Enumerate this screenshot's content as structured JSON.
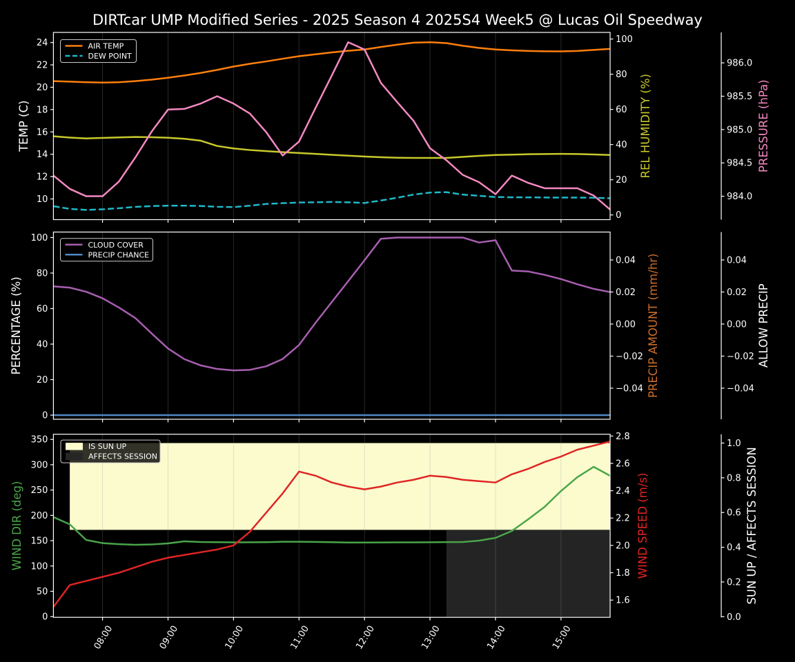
{
  "title": "DIRTcar UMP Modified Series - 2025 Season 4 2025S4 Week5 @ Lucas Oil Speedway",
  "colors": {
    "background": "#000000",
    "text": "#ffffff",
    "spine": "#ffffff",
    "grid": "#999999",
    "air_temp": "#ff7f0e",
    "dew_point": "#1fb9c9",
    "rel_humidity": "#c9c92c",
    "pressure": "#f489c1",
    "cloud_cover": "#a75fb0",
    "precip_chance": "#4f87c5",
    "precip_amount_label": "#cc6d2d",
    "allow_precip_label": "#ffffff",
    "wind_dir": "#4aa54a",
    "wind_speed": "#e02424",
    "sun_up_fill": "#fbfbce",
    "affects_session_fill": "#242424",
    "legend_background": "#000000",
    "legend_border": "#cccccc"
  },
  "x_axis": {
    "xlim_hours": [
      7.25,
      15.75
    ],
    "tick_hours": [
      8,
      9,
      10,
      11,
      12,
      13,
      14,
      15
    ],
    "tick_labels": [
      "08:00",
      "09:00",
      "10:00",
      "11:00",
      "12:00",
      "13:00",
      "14:00",
      "15:00"
    ]
  },
  "chart_data": {
    "type": "line",
    "times": [
      "07:15",
      "07:30",
      "07:45",
      "08:00",
      "08:15",
      "08:30",
      "08:45",
      "09:00",
      "09:15",
      "09:30",
      "09:45",
      "10:00",
      "10:15",
      "10:30",
      "10:45",
      "11:00",
      "11:15",
      "11:30",
      "11:45",
      "12:00",
      "12:15",
      "12:30",
      "12:45",
      "13:00",
      "13:15",
      "13:30",
      "13:45",
      "14:00",
      "14:15",
      "14:30",
      "14:45",
      "15:00",
      "15:15",
      "15:30",
      "15:45"
    ],
    "panels": [
      {
        "name": "temperature-panel",
        "axes": {
          "left": {
            "label": "TEMP (C)",
            "label_color": "#ffffff",
            "range": [
              8.148,
              24.907
            ],
            "tick_values": [
              10,
              12,
              14,
              16,
              18,
              20,
              22,
              24
            ],
            "tick_labels": [
              "10",
              "12",
              "14",
              "16",
              "18",
              "20",
              "22",
              "24"
            ]
          },
          "right1": {
            "label": "REL HUMIDITY (%)",
            "label_color": "#c9c92c",
            "range": [
              -2.67,
              103.76
            ],
            "tick_values": [
              0,
              20,
              40,
              60,
              80,
              100
            ],
            "tick_labels": [
              "0",
              "20",
              "40",
              "60",
              "80",
              "100"
            ]
          },
          "right2": {
            "label": "PRESSURE (hPa)",
            "label_color": "#f489c1",
            "range": [
              983.649,
              986.457
            ],
            "tick_values": [
              984.0,
              984.5,
              985.0,
              985.5,
              986.0
            ],
            "tick_labels": [
              "984.0",
              "984.5",
              "985.0",
              "985.5",
              "986.0"
            ]
          }
        },
        "legend": [
          {
            "label": "AIR TEMP",
            "kind": "line",
            "color": "#ff7f0e"
          },
          {
            "label": "DEW POINT",
            "kind": "dashed",
            "color": "#1fb9c9"
          }
        ],
        "series": [
          {
            "name": "AIR TEMP",
            "axis": "left",
            "color": "#ff7f0e",
            "dashed": false,
            "values": [
              20.55,
              20.5,
              20.45,
              20.42,
              20.45,
              20.55,
              20.68,
              20.85,
              21.05,
              21.28,
              21.55,
              21.85,
              22.1,
              22.31,
              22.55,
              22.78,
              22.95,
              23.12,
              23.26,
              23.38,
              23.6,
              23.81,
              23.99,
              24.03,
              23.95,
              23.71,
              23.52,
              23.38,
              23.3,
              23.25,
              23.22,
              23.21,
              23.25,
              23.34,
              23.43
            ]
          },
          {
            "name": "DEW POINT",
            "axis": "left",
            "color": "#1fb9c9",
            "dashed": true,
            "values": [
              9.35,
              9.11,
              9.02,
              9.07,
              9.17,
              9.29,
              9.36,
              9.4,
              9.4,
              9.37,
              9.3,
              9.27,
              9.4,
              9.55,
              9.62,
              9.68,
              9.7,
              9.73,
              9.7,
              9.64,
              9.86,
              10.11,
              10.39,
              10.57,
              10.61,
              10.39,
              10.28,
              10.17,
              10.15,
              10.14,
              10.13,
              10.12,
              10.12,
              10.11,
              10.06
            ]
          },
          {
            "name": "REL HUMIDITY",
            "axis": "right1",
            "color": "#c9c92c",
            "dashed": false,
            "values": [
              44.7,
              44.0,
              43.5,
              43.8,
              44.1,
              44.3,
              44.2,
              43.9,
              43.3,
              42.2,
              39.2,
              37.8,
              36.9,
              36.3,
              35.7,
              35.2,
              34.7,
              34.2,
              33.7,
              33.2,
              32.8,
              32.5,
              32.4,
              32.4,
              32.4,
              33.0,
              33.6,
              34.1,
              34.3,
              34.5,
              34.6,
              34.7,
              34.6,
              34.4,
              34.1
            ]
          },
          {
            "name": "PRESSURE",
            "axis": "right2",
            "color": "#f489c1",
            "dashed": false,
            "values": [
              984.31,
              984.11,
              984.0,
              984.0,
              984.22,
              984.58,
              984.97,
              985.3,
              985.31,
              985.39,
              985.5,
              985.39,
              985.24,
              984.96,
              984.61,
              984.82,
              985.32,
              985.81,
              986.31,
              986.2,
              985.7,
              985.41,
              985.13,
              984.72,
              984.54,
              984.32,
              984.21,
              984.03,
              984.31,
              984.2,
              984.12,
              984.12,
              984.12,
              984.01,
              983.8
            ]
          }
        ],
        "bands": []
      },
      {
        "name": "cloud-precip-panel",
        "axes": {
          "left": {
            "label": "PERCENTAGE (%)",
            "label_color": "#ffffff",
            "range": [
              -2.33,
              103.1
            ],
            "tick_values": [
              0,
              20,
              40,
              60,
              80,
              100
            ],
            "tick_labels": [
              "0",
              "20",
              "40",
              "60",
              "80",
              "100"
            ]
          },
          "right1": {
            "label": "PRECIP AMOUNT (mm/hr)",
            "label_color": "#cc6d2d",
            "range": [
              -0.0594,
              0.0574
            ],
            "tick_values": [
              -0.04,
              -0.02,
              0.0,
              0.02,
              0.04
            ],
            "tick_labels": [
              "−0.04",
              "−0.02",
              "0.00",
              "0.02",
              "0.04"
            ]
          },
          "right2": {
            "label": "ALLOW PRECIP",
            "label_color": "#ffffff",
            "range": [
              -0.0594,
              0.0574
            ],
            "tick_values": [
              -0.04,
              -0.02,
              0.0,
              0.02,
              0.04
            ],
            "tick_labels": [
              "−0.04",
              "−0.02",
              "0.00",
              "0.02",
              "0.04"
            ]
          }
        },
        "legend": [
          {
            "label": "CLOUD COVER",
            "kind": "line",
            "color": "#a75fb0"
          },
          {
            "label": "PRECIP CHANCE",
            "kind": "line",
            "color": "#4f87c5"
          }
        ],
        "series": [
          {
            "name": "CLOUD COVER",
            "axis": "left",
            "color": "#a75fb0",
            "dashed": false,
            "values": [
              72.5,
              71.8,
              69.5,
              65.8,
              60.6,
              54.7,
              46.0,
              37.5,
              31.5,
              28.0,
              26.0,
              25.2,
              25.5,
              27.5,
              31.6,
              39.5,
              51.9,
              63.7,
              75.4,
              87.2,
              99.3,
              100.0,
              100.0,
              100.0,
              100.0,
              100.0,
              97.2,
              98.5,
              81.4,
              80.9,
              79.0,
              76.6,
              73.7,
              71.1,
              69.3
            ]
          },
          {
            "name": "PRECIP CHANCE",
            "axis": "left",
            "color": "#4f87c5",
            "dashed": false,
            "values": [
              0,
              0,
              0,
              0,
              0,
              0,
              0,
              0,
              0,
              0,
              0,
              0,
              0,
              0,
              0,
              0,
              0,
              0,
              0,
              0,
              0,
              0,
              0,
              0,
              0,
              0,
              0,
              0,
              0,
              0,
              0,
              0,
              0,
              0,
              0
            ]
          }
        ],
        "bands": []
      },
      {
        "name": "wind-sun-panel",
        "axes": {
          "left": {
            "label": "WIND DIR (deg)",
            "label_color": "#4aa54a",
            "range": [
              -1.36,
              360.2
            ],
            "tick_values": [
              0,
              50,
              100,
              150,
              200,
              250,
              300,
              350
            ],
            "tick_labels": [
              "0",
              "50",
              "100",
              "150",
              "200",
              "250",
              "300",
              "350"
            ]
          },
          "right1": {
            "label": "WIND SPEED (m/s)",
            "label_color": "#e02424",
            "range": [
              1.474,
              2.813
            ],
            "tick_values": [
              1.6,
              1.8,
              2.0,
              2.2,
              2.4,
              2.6,
              2.8
            ],
            "tick_labels": [
              "1.6",
              "1.8",
              "2.0",
              "2.2",
              "2.4",
              "2.6",
              "2.8"
            ]
          },
          "right2": {
            "label": "SUN UP / AFFECTS SESSION",
            "label_color": "#ffffff",
            "range": [
              -0.00357,
              1.0508
            ],
            "tick_values": [
              0.0,
              0.2,
              0.4,
              0.6,
              0.8,
              1.0
            ],
            "tick_labels": [
              "0.0",
              "0.2",
              "0.4",
              "0.6",
              "0.8",
              "1.0"
            ]
          }
        },
        "legend": [
          {
            "label": "IS SUN UP",
            "kind": "patch",
            "color": "#fbfbce"
          },
          {
            "label": "AFFECTS SESSION",
            "kind": "patch",
            "color": "#262626"
          }
        ],
        "series": [
          {
            "name": "WIND DIR",
            "axis": "left",
            "color": "#4aa54a",
            "dashed": false,
            "values": [
              196.6,
              182.2,
              151.4,
              145.2,
              143.1,
              141.9,
              142.5,
              144.6,
              148.7,
              147.3,
              147.0,
              146.6,
              146.8,
              147.0,
              147.9,
              147.9,
              147.5,
              147.0,
              146.3,
              146.3,
              146.5,
              146.7,
              146.7,
              146.9,
              147.1,
              147.3,
              150.1,
              155.5,
              169.2,
              192.3,
              216.8,
              248.1,
              275.4,
              295.8,
              278.1
            ]
          },
          {
            "name": "WIND SPEED",
            "axis": "right1",
            "color": "#e02424",
            "dashed": false,
            "values": [
              1.55,
              1.71,
              1.74,
              1.77,
              1.8,
              1.84,
              1.88,
              1.91,
              1.93,
              1.95,
              1.97,
              2.0,
              2.1,
              2.24,
              2.38,
              2.54,
              2.51,
              2.46,
              2.43,
              2.41,
              2.43,
              2.46,
              2.48,
              2.51,
              2.5,
              2.48,
              2.47,
              2.46,
              2.52,
              2.56,
              2.61,
              2.65,
              2.7,
              2.73,
              2.76
            ]
          }
        ],
        "bands": [
          {
            "name": "is-sun-up",
            "axis": "right2",
            "from_time": "07:30",
            "to_time": "15:45",
            "value_from": 0.5,
            "value_to": 1.0,
            "color": "#fbfbce"
          },
          {
            "name": "affects-session",
            "axis": "right2",
            "from_time": "13:15",
            "to_time": "15:45",
            "value_from": 0.0,
            "value_to": 0.5,
            "color": "#242424"
          }
        ]
      }
    ]
  }
}
